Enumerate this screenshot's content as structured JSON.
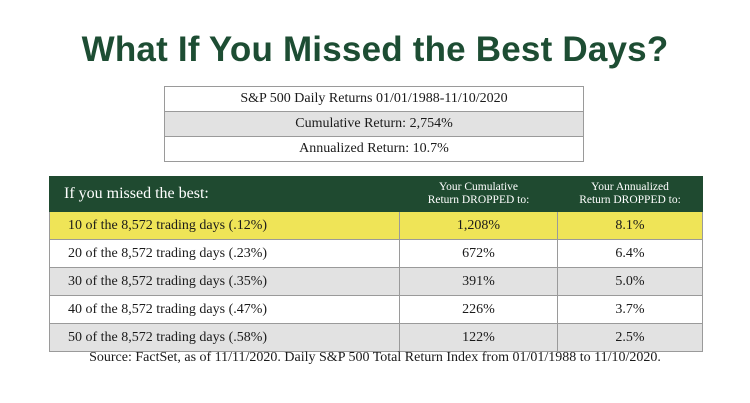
{
  "title": "What If You Missed the Best Days?",
  "summary": {
    "rows": [
      "S&P 500 Daily Returns 01/01/1988-11/10/2020",
      "Cumulative Return: 2,754%",
      "Annualized Return: 10.7%"
    ]
  },
  "table": {
    "header": {
      "col1": "If you missed the best:",
      "col2_line1": "Your Cumulative",
      "col2_line2": "Return DROPPED to:",
      "col3_line1": "Your Annualized",
      "col3_line2": "Return DROPPED to:"
    },
    "rows": [
      {
        "label": "10 of the 8,572 trading days (.12%)",
        "cumulative": "1,208%",
        "annualized": "8.1%"
      },
      {
        "label": "20 of the 8,572 trading days (.23%)",
        "cumulative": "672%",
        "annualized": "6.4%"
      },
      {
        "label": "30 of the 8,572 trading days (.35%)",
        "cumulative": "391%",
        "annualized": "5.0%"
      },
      {
        "label": "40 of the 8,572 trading days (.47%)",
        "cumulative": "226%",
        "annualized": "3.7%"
      },
      {
        "label": "50 of the 8,572 trading days (.58%)",
        "cumulative": "122%",
        "annualized": "2.5%"
      }
    ],
    "highlight_color": "#efe457",
    "header_color": "#1f4a30"
  },
  "source": "Source: FactSet, as of 11/11/2020. Daily S&P 500 Total Return Index from 01/01/1988 to 11/10/2020."
}
